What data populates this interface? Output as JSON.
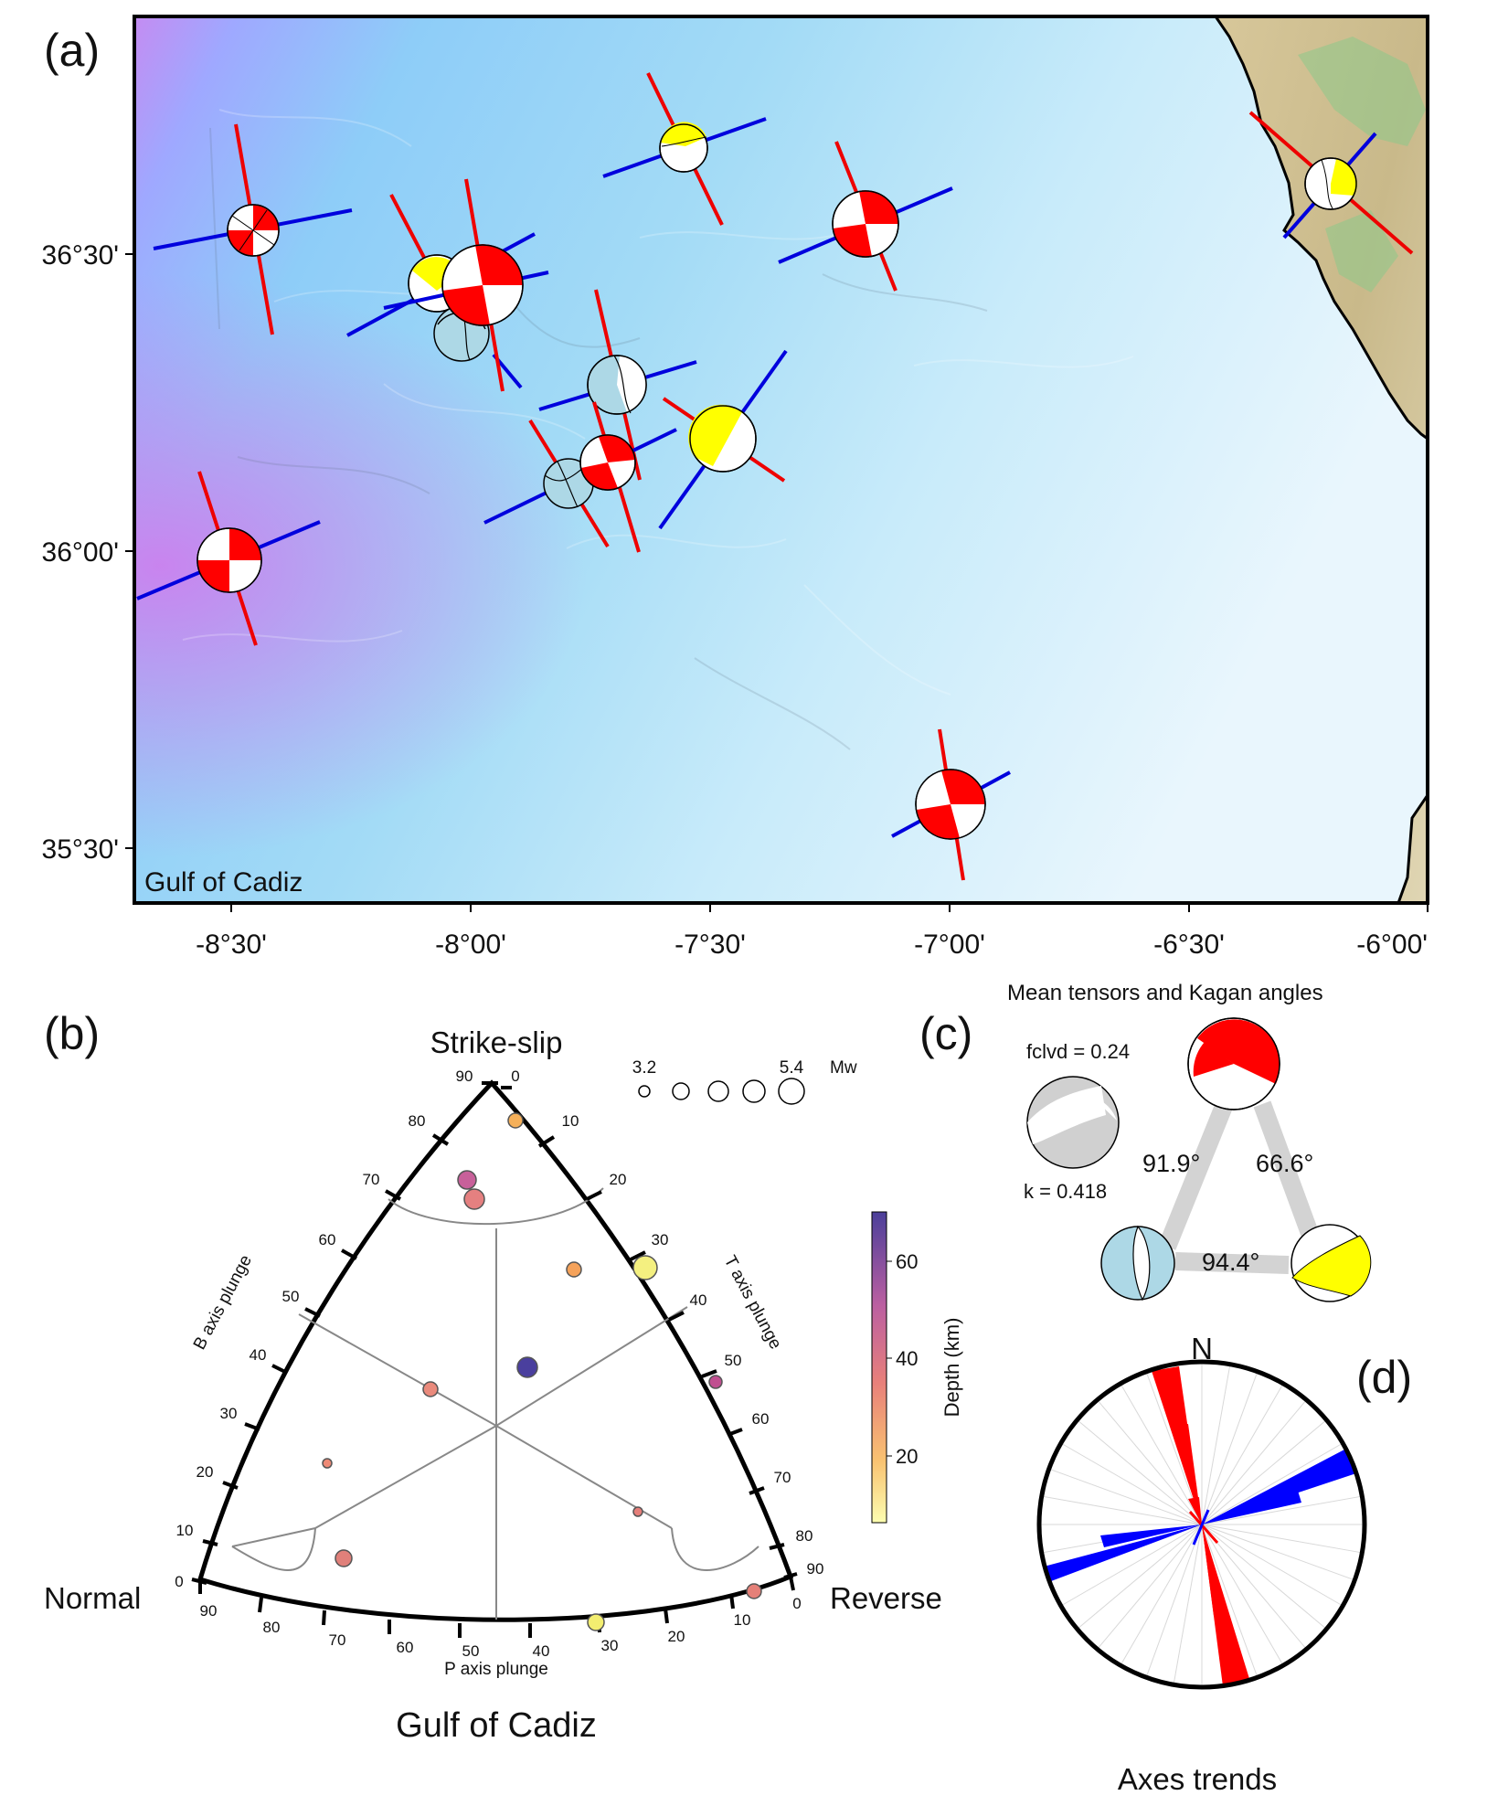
{
  "panel_a": {
    "label": "(a)",
    "region_label": "Gulf of Cadiz",
    "x_ticks": [
      "-8°30'",
      "-8°00'",
      "-7°30'",
      "-7°00'",
      "-6°30'",
      "-6°00'"
    ],
    "y_ticks": [
      "36°30'",
      "36°00'",
      "35°30'"
    ],
    "colors": {
      "strike_slip": "#ff0000",
      "reverse": "#ffff00",
      "normal": "#add8e6",
      "t_axis": "#0000dd",
      "p_axis": "#ee0000"
    }
  },
  "panel_b": {
    "label": "(b)",
    "corner_top": "Strike-slip",
    "corner_left": "Normal",
    "corner_right": "Reverse",
    "b_axis_label": "B axis plunge",
    "t_axis_label": "T axis plunge",
    "p_axis_label": "P axis plunge",
    "footer": "Gulf of Cadiz",
    "size_legend": {
      "min": "3.2",
      "max": "5.4",
      "unit": "Mw"
    },
    "colorbar": {
      "label": "Depth (km)",
      "ticks": [
        "60",
        "40",
        "20"
      ]
    },
    "left_ticks": [
      "90",
      "80",
      "70",
      "60",
      "50",
      "40",
      "30",
      "20",
      "10",
      "0"
    ],
    "right_ticks": [
      "0",
      "10",
      "20",
      "30",
      "40",
      "50",
      "60",
      "70",
      "80",
      "90"
    ],
    "bottom_ticks": [
      "90",
      "80",
      "70",
      "60",
      "50",
      "40",
      "30",
      "20",
      "10",
      "0"
    ]
  },
  "panel_c": {
    "label": "(c)",
    "title": "Mean tensors and Kagan angles",
    "fclvd": "fclvd = 0.24",
    "k": "k = 0.418",
    "angles": [
      "91.9°",
      "66.6°",
      "94.4°"
    ]
  },
  "panel_d": {
    "label": "(d)",
    "north": "N",
    "title": "Axes trends"
  }
}
